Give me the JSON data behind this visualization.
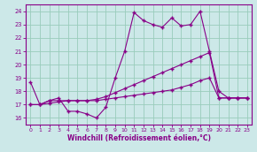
{
  "xlabel": "Windchill (Refroidissement éolien,°C)",
  "bg_color": "#cce8e8",
  "line_color": "#880088",
  "xlim": [
    -0.5,
    23.5
  ],
  "ylim": [
    15.5,
    24.5
  ],
  "yticks": [
    16,
    17,
    18,
    19,
    20,
    21,
    22,
    23,
    24
  ],
  "xticks": [
    0,
    1,
    2,
    3,
    4,
    5,
    6,
    7,
    8,
    9,
    10,
    11,
    12,
    13,
    14,
    15,
    16,
    17,
    18,
    19,
    20,
    21,
    22,
    23
  ],
  "line1_x": [
    0,
    1,
    2,
    3,
    4,
    5,
    6,
    7,
    8,
    9,
    10,
    11,
    12,
    13,
    14,
    15,
    16,
    17,
    18,
    19,
    20,
    21,
    22,
    23
  ],
  "line1_y": [
    18.7,
    17.0,
    17.3,
    17.5,
    16.5,
    16.5,
    16.3,
    16.0,
    16.8,
    19.0,
    21.0,
    23.9,
    23.3,
    23.0,
    22.8,
    23.5,
    22.9,
    23.0,
    24.0,
    21.0,
    18.0,
    17.5,
    17.5,
    17.5
  ],
  "line2_x": [
    0,
    1,
    2,
    3,
    4,
    5,
    6,
    7,
    8,
    9,
    10,
    11,
    12,
    13,
    14,
    15,
    16,
    17,
    18,
    19,
    20,
    21,
    22,
    23
  ],
  "line2_y": [
    17.0,
    17.0,
    17.1,
    17.2,
    17.3,
    17.3,
    17.3,
    17.4,
    17.6,
    17.9,
    18.2,
    18.5,
    18.8,
    19.1,
    19.4,
    19.7,
    20.0,
    20.3,
    20.6,
    20.9,
    17.5,
    17.5,
    17.5,
    17.5
  ],
  "line3_x": [
    0,
    1,
    2,
    3,
    4,
    5,
    6,
    7,
    8,
    9,
    10,
    11,
    12,
    13,
    14,
    15,
    16,
    17,
    18,
    19,
    20,
    21,
    22,
    23
  ],
  "line3_y": [
    17.0,
    17.0,
    17.3,
    17.3,
    17.3,
    17.3,
    17.3,
    17.3,
    17.4,
    17.5,
    17.6,
    17.7,
    17.8,
    17.9,
    18.0,
    18.1,
    18.3,
    18.5,
    18.8,
    19.0,
    17.5,
    17.5,
    17.5,
    17.5
  ],
  "grid_color": "#99ccbb",
  "marker": "+",
  "markersize": 3.5,
  "linewidth": 0.8
}
